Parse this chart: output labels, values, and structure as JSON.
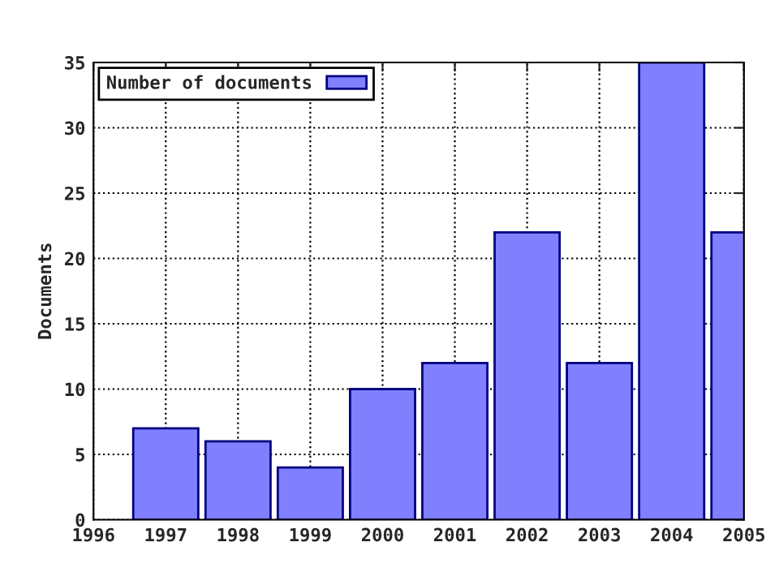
{
  "chart_data": {
    "type": "bar",
    "ylabel": "Documents",
    "x": [
      1997,
      1998,
      1999,
      2000,
      2001,
      2002,
      2003,
      2004,
      2005
    ],
    "series": [
      {
        "name": "Number of documents",
        "color": "#8080ff",
        "values": [
          7,
          6,
          4,
          10,
          12,
          22,
          12,
          35,
          22
        ]
      }
    ],
    "xlim": [
      1996,
      2005
    ],
    "xticks": [
      1996,
      1997,
      1998,
      1999,
      2000,
      2001,
      2002,
      2003,
      2004,
      2005
    ],
    "ylim": [
      0,
      35
    ],
    "yticks": [
      0,
      5,
      10,
      15,
      20,
      25,
      30,
      35
    ],
    "grid": true,
    "legend": "top left"
  }
}
